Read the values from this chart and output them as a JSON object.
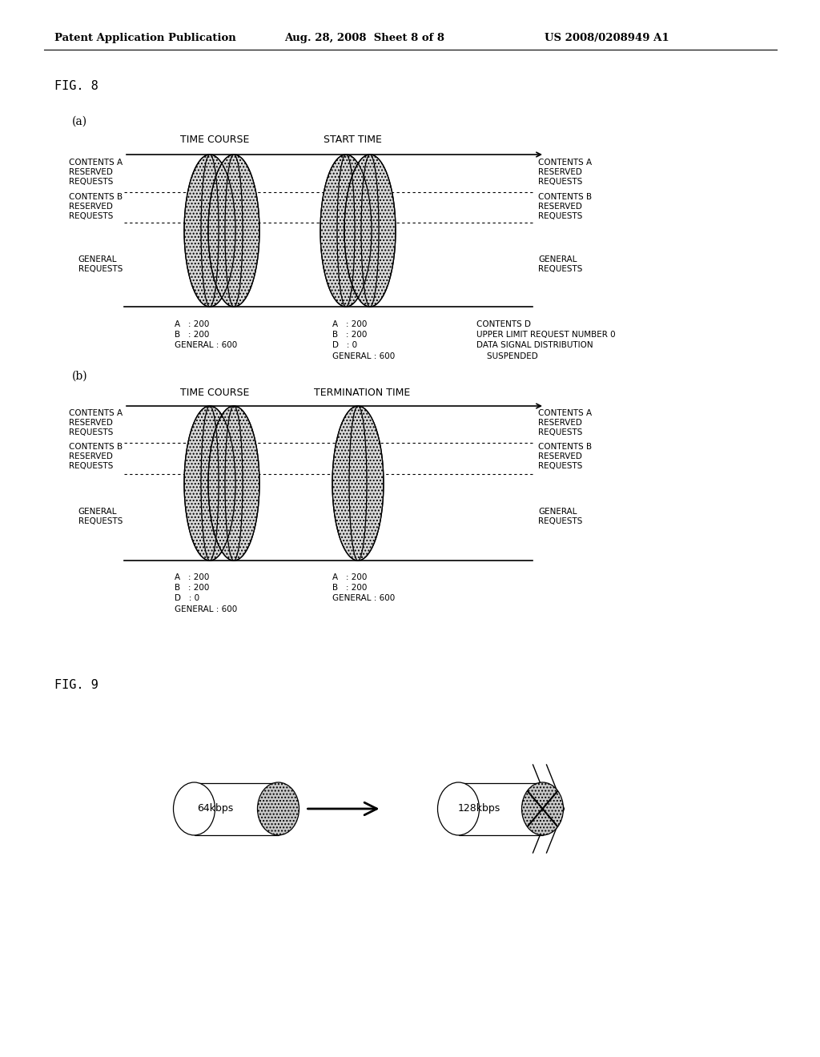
{
  "bg_color": "#ffffff",
  "header_left": "Patent Application Publication",
  "header_mid": "Aug. 28, 2008  Sheet 8 of 8",
  "header_right": "US 2008/0208949 A1",
  "fig8_label": "FIG. 8",
  "fig9_label": "FIG. 9",
  "sub_a_label": "(a)",
  "sub_b_label": "(b)",
  "fig8a": {
    "time_course_label": "TIME COURSE",
    "start_time_label": "START TIME",
    "contents_a_left": "CONTENTS A\nRESERVED\nREQUESTS",
    "contents_b_left": "CONTENTS B\nRESERVED\nREQUESTS",
    "general_left": "GENERAL\nREQUESTS",
    "contents_a_right": "CONTENTS A\nRESERVED\nREQUESTS",
    "contents_b_right": "CONTENTS B\nRESERVED\nREQUESTS",
    "general_right": "GENERAL\nREQUESTS",
    "stats_left": "A   : 200\nB   : 200\nGENERAL : 600",
    "stats_right": "A   : 200\nB   : 200\nD   : 0\nGENERAL : 600",
    "contents_d_text": "CONTENTS D\nUPPER LIMIT REQUEST NUMBER 0\nDATA SIGNAL DISTRIBUTION\n    SUSPENDED"
  },
  "fig8b": {
    "time_course_label": "TIME COURSE",
    "termination_time_label": "TERMINATION TIME",
    "contents_a_left": "CONTENTS A\nRESERVED\nREQUESTS",
    "contents_b_left": "CONTENTS B\nRESERVED\nREQUESTS",
    "general_left": "GENERAL\nREQUESTS",
    "contents_a_right": "CONTENTS A\nRESERVED\nREQUESTS",
    "contents_b_right": "CONTENTS B\nRESERVED\nREQUESTS",
    "general_right": "GENERAL\nREQUESTS",
    "stats_left": "A   : 200\nB   : 200\nD   : 0\nGENERAL : 600",
    "stats_right": "A   : 200\nB   : 200\nGENERAL : 600"
  },
  "fig9": {
    "left_label": "64kbps",
    "right_label": "128kbps"
  }
}
